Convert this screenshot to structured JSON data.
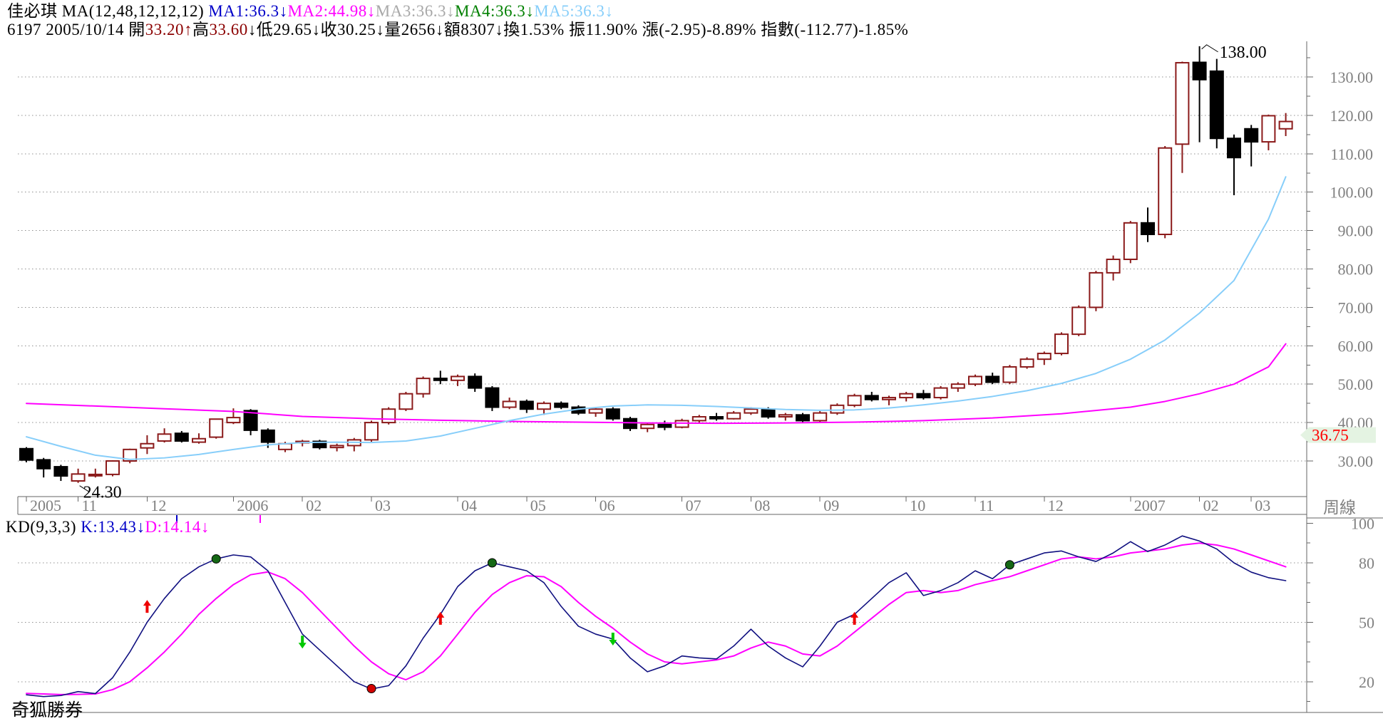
{
  "header": {
    "line1": [
      {
        "t": "佳必琪 MA(12,48,12,12,12)  ",
        "c": "#000000"
      },
      {
        "t": "MA1:36.3↓",
        "c": "#0000C8"
      },
      {
        "t": "MA2:44.98↓",
        "c": "#FF00FF"
      },
      {
        "t": "MA3:36.3↓",
        "c": "#A8A8A8"
      },
      {
        "t": "MA4:36.3↓",
        "c": "#008000"
      },
      {
        "t": "MA5:36.3↓",
        "c": "#87CEFA"
      }
    ],
    "line2": [
      {
        "t": "6197 2005/10/14 ",
        "c": "#000000"
      },
      {
        "t": "開",
        "c": "#000000"
      },
      {
        "t": "33.20",
        "c": "#8B0000"
      },
      {
        "t": "↑",
        "c": "#8B0000"
      },
      {
        "t": "高",
        "c": "#000000"
      },
      {
        "t": "33.60",
        "c": "#8B0000"
      },
      {
        "t": "↓",
        "c": "#000000"
      },
      {
        "t": "低",
        "c": "#000000"
      },
      {
        "t": "29.65",
        "c": "#000000"
      },
      {
        "t": "↓",
        "c": "#000000"
      },
      {
        "t": "收",
        "c": "#000000"
      },
      {
        "t": "30.25",
        "c": "#000000"
      },
      {
        "t": "↓",
        "c": "#000000"
      },
      {
        "t": "量",
        "c": "#000000"
      },
      {
        "t": "2656",
        "c": "#000000"
      },
      {
        "t": "↓",
        "c": "#000000"
      },
      {
        "t": "額",
        "c": "#000000"
      },
      {
        "t": "8307",
        "c": "#000000"
      },
      {
        "t": "↓",
        "c": "#000000"
      },
      {
        "t": "換1.53% 振11.90% 漲(-2.95)-8.89% 指數(-112.77)-1.85%",
        "c": "#000000"
      }
    ],
    "kd": [
      {
        "t": "KD(9,3,3) ",
        "c": "#000000"
      },
      {
        "t": "K:13.43↓",
        "c": "#0000C8"
      },
      {
        "t": "D:14.14↓",
        "c": "#FF00FF"
      }
    ]
  },
  "brand": "奇狐勝券",
  "right_label": "周線",
  "price_axis": {
    "labels": [
      {
        "v": 130,
        "text": "130.00"
      },
      {
        "v": 120,
        "text": "120.00"
      },
      {
        "v": 110,
        "text": "110.00"
      },
      {
        "v": 100,
        "text": "100.00"
      },
      {
        "v": 90,
        "text": "90.00"
      },
      {
        "v": 80,
        "text": "80.00"
      },
      {
        "v": 70,
        "text": "70.00"
      },
      {
        "v": 60,
        "text": "60.00"
      },
      {
        "v": 50,
        "text": "50.00"
      },
      {
        "v": 40,
        "text": "40.00"
      },
      {
        "v": 30,
        "text": "30.00"
      }
    ],
    "price_tag": {
      "text": "36.75",
      "value": 36.75,
      "text_color": "#FF0000",
      "bg_color": "#E4F3E2"
    }
  },
  "kd_axis": {
    "labels": [
      {
        "v": 100,
        "text": "100"
      },
      {
        "v": 80,
        "text": "80"
      },
      {
        "v": 50,
        "text": "50"
      },
      {
        "v": 20,
        "text": "20"
      }
    ],
    "gridlines": [
      80,
      50,
      20
    ]
  },
  "date_axis": [
    {
      "i": 0,
      "label": "2005"
    },
    {
      "i": 3,
      "label": "11"
    },
    {
      "i": 7,
      "label": "12"
    },
    {
      "i": 12,
      "label": "2006"
    },
    {
      "i": 16,
      "label": "02"
    },
    {
      "i": 20,
      "label": "03"
    },
    {
      "i": 25,
      "label": "04"
    },
    {
      "i": 29,
      "label": "05"
    },
    {
      "i": 33,
      "label": "06"
    },
    {
      "i": 38,
      "label": "07"
    },
    {
      "i": 42,
      "label": "08"
    },
    {
      "i": 46,
      "label": "09"
    },
    {
      "i": 51,
      "label": "10"
    },
    {
      "i": 55,
      "label": "11"
    },
    {
      "i": 59,
      "label": "12"
    },
    {
      "i": 64,
      "label": "2007"
    },
    {
      "i": 68,
      "label": "02"
    },
    {
      "i": 71,
      "label": "03"
    }
  ],
  "annotations": {
    "low": {
      "index": 3,
      "value": 24.3,
      "text": "24.30"
    },
    "high": {
      "index": 68,
      "value": 138.0,
      "text": "138.00"
    }
  },
  "chart_data": {
    "type": "candlestick",
    "period": "weekly",
    "symbol": "6197",
    "name": "佳必琪",
    "selected_date": "2005/10/14",
    "selected_ohlc": {
      "open": 33.2,
      "high": 33.6,
      "low": 29.65,
      "close": 30.25,
      "volume": 2656,
      "amount": 8307
    },
    "ylim": [
      21,
      139
    ],
    "colors": {
      "up": "#8B1A1A",
      "down": "#000000",
      "ma12": "#87CEFA",
      "ma48": "#FF00FF",
      "k_line": "#101080",
      "d_line": "#FF00FF",
      "axis_text": "#808080",
      "grid": "#909090",
      "border": "#666666"
    },
    "ohlc": [
      [
        33.2,
        33.6,
        29.65,
        30.25
      ],
      [
        30.3,
        30.8,
        25.7,
        28.0
      ],
      [
        28.5,
        29.0,
        24.8,
        26.1
      ],
      [
        24.8,
        28.0,
        24.3,
        26.6
      ],
      [
        26.4,
        28.0,
        25.7,
        26.5
      ],
      [
        26.5,
        30.2,
        26.0,
        30.0
      ],
      [
        30.0,
        33.2,
        29.4,
        33.0
      ],
      [
        33.4,
        36.7,
        31.8,
        34.5
      ],
      [
        35.2,
        38.5,
        34.8,
        37.0
      ],
      [
        37.2,
        37.8,
        34.8,
        35.2
      ],
      [
        34.9,
        37.2,
        34.5,
        35.8
      ],
      [
        36.2,
        41.0,
        35.8,
        40.9
      ],
      [
        40.0,
        43.7,
        39.6,
        41.3
      ],
      [
        43.1,
        43.5,
        36.7,
        38.0
      ],
      [
        38.0,
        38.5,
        33.4,
        34.9
      ],
      [
        33.0,
        35.0,
        32.3,
        34.5
      ],
      [
        35.0,
        35.5,
        33.8,
        35.1
      ],
      [
        35.1,
        35.5,
        33.0,
        33.5
      ],
      [
        33.5,
        34.5,
        32.5,
        34.0
      ],
      [
        34.0,
        36.0,
        32.5,
        35.5
      ],
      [
        35.5,
        40.5,
        35.0,
        40.0
      ],
      [
        40.0,
        44.0,
        39.5,
        43.5
      ],
      [
        43.5,
        48.0,
        43.0,
        47.5
      ],
      [
        47.5,
        52.0,
        46.5,
        51.5
      ],
      [
        51.5,
        53.5,
        50.0,
        51.0
      ],
      [
        51.0,
        52.5,
        49.5,
        52.0
      ],
      [
        52.0,
        52.8,
        48.0,
        49.0
      ],
      [
        49.0,
        49.5,
        43.0,
        44.0
      ],
      [
        44.0,
        46.5,
        43.5,
        45.5
      ],
      [
        45.5,
        46.0,
        42.5,
        43.5
      ],
      [
        43.5,
        45.5,
        42.0,
        45.0
      ],
      [
        45.0,
        45.5,
        43.5,
        44.0
      ],
      [
        44.0,
        44.5,
        42.0,
        42.5
      ],
      [
        42.5,
        44.0,
        41.5,
        43.5
      ],
      [
        43.5,
        44.0,
        40.5,
        41.0
      ],
      [
        41.0,
        41.5,
        37.8,
        38.5
      ],
      [
        38.5,
        40.0,
        37.5,
        39.5
      ],
      [
        39.5,
        40.5,
        38.0,
        38.8
      ],
      [
        38.8,
        41.0,
        38.5,
        40.5
      ],
      [
        40.5,
        42.0,
        40.0,
        41.5
      ],
      [
        41.5,
        42.5,
        40.5,
        41.0
      ],
      [
        41.0,
        43.0,
        40.8,
        42.5
      ],
      [
        42.5,
        44.0,
        42.0,
        43.5
      ],
      [
        43.5,
        44.0,
        41.0,
        41.5
      ],
      [
        41.5,
        42.5,
        40.5,
        42.0
      ],
      [
        42.0,
        42.5,
        40.0,
        40.5
      ],
      [
        40.5,
        43.0,
        40.0,
        42.5
      ],
      [
        42.5,
        45.0,
        42.0,
        44.5
      ],
      [
        44.5,
        47.5,
        44.0,
        47.0
      ],
      [
        47.0,
        48.0,
        45.5,
        46.0
      ],
      [
        46.0,
        47.0,
        44.5,
        46.5
      ],
      [
        46.5,
        48.0,
        45.5,
        47.5
      ],
      [
        47.5,
        48.5,
        46.0,
        46.5
      ],
      [
        46.5,
        49.5,
        46.0,
        49.0
      ],
      [
        49.0,
        50.5,
        48.0,
        50.0
      ],
      [
        50.0,
        52.5,
        49.5,
        52.0
      ],
      [
        52.0,
        53.0,
        50.0,
        50.5
      ],
      [
        50.5,
        55.0,
        50.0,
        54.5
      ],
      [
        54.5,
        57.0,
        54.0,
        56.5
      ],
      [
        56.5,
        58.5,
        55.0,
        58.0
      ],
      [
        58.0,
        63.5,
        57.5,
        63.0
      ],
      [
        63.0,
        70.5,
        62.5,
        70.0
      ],
      [
        70.0,
        79.5,
        69.0,
        79.0
      ],
      [
        79.0,
        83.5,
        77.0,
        82.5
      ],
      [
        82.5,
        92.5,
        81.5,
        92.0
      ],
      [
        92.0,
        96.0,
        87.0,
        89.0
      ],
      [
        89.0,
        112.0,
        88.0,
        111.5
      ],
      [
        112.5,
        134.0,
        105.0,
        133.7
      ],
      [
        133.8,
        138.0,
        113.0,
        129.3
      ],
      [
        131.5,
        134.7,
        111.4,
        114.0
      ],
      [
        114.0,
        115.0,
        99.2,
        109.0
      ],
      [
        116.5,
        117.5,
        106.7,
        113.1
      ],
      [
        113.1,
        120.2,
        110.9,
        119.9
      ],
      [
        116.5,
        120.6,
        114.6,
        118.4
      ]
    ],
    "ma12_points": [
      [
        0,
        36.3
      ],
      [
        2,
        33.8
      ],
      [
        4,
        31.5
      ],
      [
        6,
        30.4
      ],
      [
        8,
        30.8
      ],
      [
        10,
        31.7
      ],
      [
        12,
        33.0
      ],
      [
        14,
        34.2
      ],
      [
        16,
        34.8
      ],
      [
        18,
        34.9
      ],
      [
        20,
        34.8
      ],
      [
        22,
        35.2
      ],
      [
        24,
        36.5
      ],
      [
        26,
        38.5
      ],
      [
        28,
        40.5
      ],
      [
        30,
        42.2
      ],
      [
        32,
        43.5
      ],
      [
        34,
        44.3
      ],
      [
        36,
        44.6
      ],
      [
        38,
        44.5
      ],
      [
        40,
        44.2
      ],
      [
        42,
        43.8
      ],
      [
        44,
        43.4
      ],
      [
        46,
        43.2
      ],
      [
        48,
        43.3
      ],
      [
        50,
        43.8
      ],
      [
        52,
        44.6
      ],
      [
        54,
        45.6
      ],
      [
        56,
        46.8
      ],
      [
        58,
        48.3
      ],
      [
        60,
        50.2
      ],
      [
        62,
        52.8
      ],
      [
        64,
        56.5
      ],
      [
        66,
        61.5
      ],
      [
        68,
        68.5
      ],
      [
        70,
        77.0
      ],
      [
        72,
        93.0
      ],
      [
        73,
        104.0
      ]
    ],
    "ma48_points": [
      [
        0,
        44.98
      ],
      [
        4,
        44.3
      ],
      [
        8,
        43.6
      ],
      [
        12,
        42.9
      ],
      [
        16,
        41.6
      ],
      [
        20,
        41.0
      ],
      [
        24,
        40.6
      ],
      [
        28,
        40.3
      ],
      [
        32,
        40.1
      ],
      [
        36,
        39.9
      ],
      [
        40,
        39.8
      ],
      [
        44,
        39.9
      ],
      [
        48,
        40.1
      ],
      [
        52,
        40.5
      ],
      [
        56,
        41.2
      ],
      [
        60,
        42.3
      ],
      [
        64,
        44.0
      ],
      [
        66,
        45.5
      ],
      [
        68,
        47.5
      ],
      [
        70,
        50.0
      ],
      [
        72,
        54.5
      ],
      [
        73,
        60.5
      ]
    ],
    "kd": {
      "params": "(9,3,3)",
      "k_now": 13.43,
      "d_now": 14.14,
      "k": [
        13.4,
        12.5,
        13,
        15,
        14,
        22,
        35,
        50,
        62,
        72,
        78,
        82,
        84,
        83,
        76,
        60,
        44,
        36,
        28,
        20,
        16.3,
        18,
        28,
        42,
        54,
        68,
        76,
        80,
        78,
        76,
        70,
        58,
        48,
        44,
        41.5,
        32,
        25,
        28,
        33,
        32,
        31.5,
        38,
        46.5,
        38,
        32,
        27.5,
        38,
        50,
        54,
        62,
        70,
        75,
        63.5,
        66,
        70,
        76,
        72,
        79,
        82,
        85,
        86,
        83,
        80.7,
        85,
        90.7,
        85.7,
        89,
        93.6,
        91,
        87,
        80,
        75.3,
        72.5,
        71
      ],
      "d": [
        14.1,
        13.8,
        13.5,
        13.6,
        13.8,
        16,
        20,
        27,
        35,
        44,
        54,
        62,
        69,
        74,
        75.4,
        72,
        65,
        56,
        47,
        38,
        30,
        24,
        21,
        25,
        33,
        44,
        55,
        64,
        70,
        73.5,
        73,
        68,
        60,
        53,
        47,
        40,
        34,
        30,
        29,
        30,
        31,
        33,
        37,
        40,
        38,
        34,
        33,
        38,
        45,
        52,
        59,
        65,
        66,
        65,
        66,
        69,
        71,
        73,
        76,
        79,
        82,
        83,
        82,
        83,
        85,
        86,
        87,
        89,
        90,
        89,
        87,
        84,
        81,
        78
      ],
      "markers": {
        "green_dots": [
          [
            11,
            82
          ],
          [
            27,
            80
          ],
          [
            57,
            79
          ]
        ],
        "red_dots": [
          [
            20,
            16.5
          ]
        ],
        "red_up_arrows": [
          [
            7,
            58
          ],
          [
            24,
            52
          ],
          [
            48,
            52
          ]
        ],
        "green_down_arrows": [
          [
            16,
            40
          ],
          [
            34,
            41.5
          ]
        ]
      }
    }
  }
}
